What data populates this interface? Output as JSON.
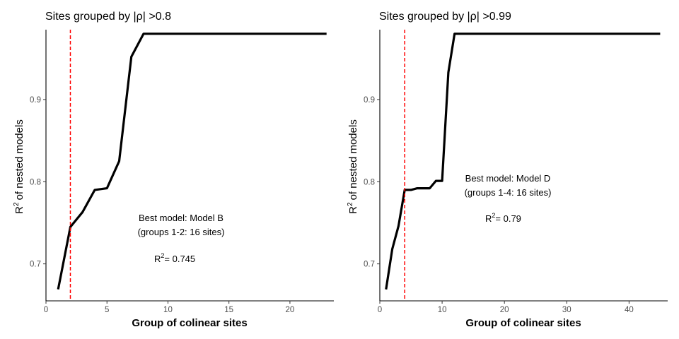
{
  "chart_data": [
    {
      "type": "line",
      "title": "Sites grouped by |ρ| >0.8",
      "xlabel": "Group of colinear sites",
      "ylabel": "of nested models",
      "ylabel_prefix": "R",
      "ylabel_sup": "2",
      "xlim": [
        0,
        23.6
      ],
      "ylim": [
        0.655,
        0.985
      ],
      "xticks": [
        0,
        5,
        10,
        15,
        20
      ],
      "yticks": [
        0.7,
        0.8,
        0.9
      ],
      "xtick_labels": [
        "0",
        "5",
        "10",
        "15",
        "20"
      ],
      "ytick_labels": [
        "0.7",
        "0.8",
        "0.9"
      ],
      "vline": {
        "x": 2,
        "color": "#ff0000"
      },
      "series": [
        {
          "color": "#000000",
          "x": [
            1,
            2,
            3,
            4,
            5,
            6,
            7,
            8,
            9,
            10,
            11,
            12,
            13,
            14,
            15,
            16,
            17,
            18,
            19,
            20,
            21,
            22,
            23
          ],
          "y": [
            0.669,
            0.745,
            0.763,
            0.79,
            0.792,
            0.825,
            0.952,
            0.98,
            0.98,
            0.98,
            0.98,
            0.98,
            0.98,
            0.98,
            0.98,
            0.98,
            0.98,
            0.98,
            0.98,
            0.98,
            0.98,
            0.98,
            0.98
          ]
        }
      ],
      "annotations": {
        "line1": "Best model: Model B",
        "line2": "(groups 1-2: 16 sites)",
        "r2_prefix": "R",
        "r2_sup": "2",
        "r2_value": "= 0.745"
      }
    },
    {
      "type": "line",
      "title": "Sites grouped by |ρ| >0.99",
      "xlabel": "Group of colinear sites",
      "ylabel": "of nested models",
      "ylabel_prefix": "R",
      "ylabel_sup": "2",
      "xlim": [
        0,
        46.2
      ],
      "ylim": [
        0.655,
        0.985
      ],
      "xticks": [
        0,
        10,
        20,
        30,
        40
      ],
      "yticks": [
        0.7,
        0.8,
        0.9
      ],
      "xtick_labels": [
        "0",
        "10",
        "20",
        "30",
        "40"
      ],
      "ytick_labels": [
        "0.7",
        "0.8",
        "0.9"
      ],
      "vline": {
        "x": 4,
        "color": "#ff0000"
      },
      "series": [
        {
          "color": "#000000",
          "x": [
            1,
            2,
            3,
            4,
            5,
            6,
            7,
            8,
            9,
            10,
            11,
            12,
            13,
            14,
            15,
            16,
            17,
            18,
            19,
            20,
            21,
            22,
            23,
            24,
            25,
            26,
            27,
            28,
            29,
            30,
            31,
            32,
            33,
            34,
            35,
            36,
            37,
            38,
            39,
            40,
            41,
            42,
            43,
            44,
            45
          ],
          "y": [
            0.669,
            0.718,
            0.746,
            0.79,
            0.79,
            0.792,
            0.792,
            0.792,
            0.801,
            0.801,
            0.933,
            0.98,
            0.98,
            0.98,
            0.98,
            0.98,
            0.98,
            0.98,
            0.98,
            0.98,
            0.98,
            0.98,
            0.98,
            0.98,
            0.98,
            0.98,
            0.98,
            0.98,
            0.98,
            0.98,
            0.98,
            0.98,
            0.98,
            0.98,
            0.98,
            0.98,
            0.98,
            0.98,
            0.98,
            0.98,
            0.98,
            0.98,
            0.98,
            0.98,
            0.98
          ]
        }
      ],
      "annotations": {
        "line1": "Best model: Model D",
        "line2": "(groups 1-4: 16 sites)",
        "r2_prefix": "R",
        "r2_sup": "2",
        "r2_value": "= 0.79"
      }
    }
  ]
}
